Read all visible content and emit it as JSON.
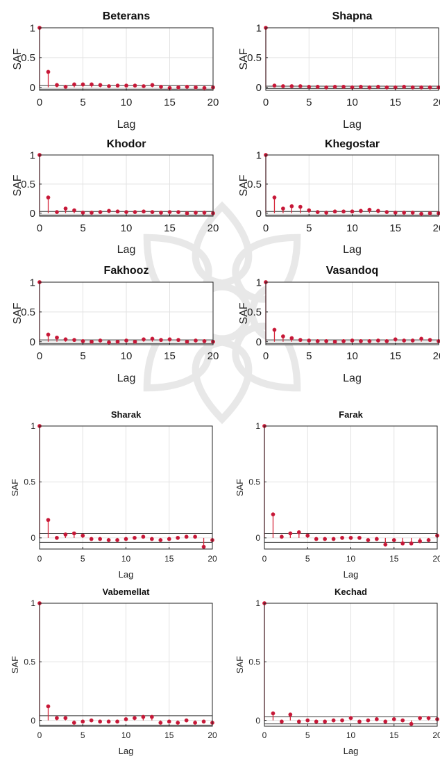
{
  "chart_data": [
    {
      "type": "stem",
      "title": "Beterans",
      "xlabel": "Lag",
      "ylabel": "SAF",
      "xlim": [
        0,
        20
      ],
      "ylim": [
        -0.05,
        1
      ],
      "xticks": [
        0,
        5,
        10,
        15,
        20
      ],
      "yticks": [
        0,
        0.5,
        1
      ],
      "ytick_labels": [
        "0",
        "0.5",
        "1"
      ],
      "conf_bound": 0.03,
      "x": [
        0,
        1,
        2,
        3,
        4,
        5,
        6,
        7,
        8,
        9,
        10,
        11,
        12,
        13,
        14,
        15,
        16,
        17,
        18,
        19,
        20
      ],
      "values": [
        1,
        0.26,
        0.04,
        0.01,
        0.05,
        0.05,
        0.05,
        0.04,
        0.02,
        0.03,
        0.03,
        0.03,
        0.02,
        0.04,
        0.01,
        -0.01,
        0.0,
        0.01,
        0.0,
        -0.01,
        0.0
      ]
    },
    {
      "type": "stem",
      "title": "Shapna",
      "xlabel": "Lag",
      "ylabel": "SAF",
      "xlim": [
        0,
        20
      ],
      "ylim": [
        -0.05,
        1
      ],
      "xticks": [
        0,
        5,
        10,
        15,
        20
      ],
      "yticks": [
        0,
        0.5,
        1
      ],
      "ytick_labels": [
        "0",
        "0.5",
        "1"
      ],
      "conf_bound": 0.02,
      "x": [
        0,
        1,
        2,
        3,
        4,
        5,
        6,
        7,
        8,
        9,
        10,
        11,
        12,
        13,
        14,
        15,
        16,
        17,
        18,
        19,
        20
      ],
      "values": [
        1,
        0.03,
        0.02,
        0.02,
        0.02,
        0.01,
        0.01,
        0.0,
        0.01,
        0.01,
        0.0,
        0.01,
        0.0,
        0.01,
        0.0,
        0.0,
        0.01,
        0.0,
        0.0,
        0.0,
        0.0
      ]
    },
    {
      "type": "stem",
      "title": "Khodor",
      "xlabel": "Lag",
      "ylabel": "SAF",
      "xlim": [
        0,
        20
      ],
      "ylim": [
        -0.05,
        1
      ],
      "xticks": [
        0,
        5,
        10,
        15,
        20
      ],
      "yticks": [
        0,
        0.5,
        1
      ],
      "ytick_labels": [
        "0",
        "0.5",
        "1"
      ],
      "conf_bound": 0.03,
      "x": [
        0,
        1,
        2,
        3,
        4,
        5,
        6,
        7,
        8,
        9,
        10,
        11,
        12,
        13,
        14,
        15,
        16,
        17,
        18,
        19,
        20
      ],
      "values": [
        1,
        0.27,
        0.02,
        0.08,
        0.05,
        0.01,
        0.01,
        0.02,
        0.04,
        0.03,
        0.02,
        0.02,
        0.03,
        0.02,
        0.01,
        0.02,
        0.02,
        0.0,
        0.01,
        0.01,
        0.0
      ]
    },
    {
      "type": "stem",
      "title": "Khegostar",
      "xlabel": "Lag",
      "ylabel": "SAF",
      "xlim": [
        0,
        20
      ],
      "ylim": [
        -0.05,
        1
      ],
      "xticks": [
        0,
        5,
        10,
        15,
        20
      ],
      "yticks": [
        0,
        0.5,
        1
      ],
      "ytick_labels": [
        "0",
        "0.5",
        "1"
      ],
      "conf_bound": 0.03,
      "x": [
        0,
        1,
        2,
        3,
        4,
        5,
        6,
        7,
        8,
        9,
        10,
        11,
        12,
        13,
        14,
        15,
        16,
        17,
        18,
        19,
        20
      ],
      "values": [
        1,
        0.27,
        0.08,
        0.12,
        0.11,
        0.05,
        0.02,
        0.01,
        0.03,
        0.03,
        0.03,
        0.04,
        0.06,
        0.04,
        0.02,
        0.01,
        0.01,
        0.01,
        -0.01,
        0.0,
        0.0
      ]
    },
    {
      "type": "stem",
      "title": "Fakhooz",
      "xlabel": "Lag",
      "ylabel": "SAF",
      "xlim": [
        0,
        20
      ],
      "ylim": [
        -0.05,
        1
      ],
      "xticks": [
        0,
        5,
        10,
        15,
        20
      ],
      "yticks": [
        0,
        0.5,
        1
      ],
      "ytick_labels": [
        "0",
        "0.5",
        "1"
      ],
      "conf_bound": 0.03,
      "x": [
        0,
        1,
        2,
        3,
        4,
        5,
        6,
        7,
        8,
        9,
        10,
        11,
        12,
        13,
        14,
        15,
        16,
        17,
        18,
        19,
        20
      ],
      "values": [
        1,
        0.12,
        0.07,
        0.04,
        0.03,
        0.01,
        0.0,
        0.02,
        -0.01,
        0.0,
        0.02,
        0.0,
        0.04,
        0.05,
        0.03,
        0.04,
        0.03,
        0.0,
        0.02,
        0.01,
        0.0
      ]
    },
    {
      "type": "stem",
      "title": "Vasandoq",
      "xlabel": "Lag",
      "ylabel": "SAF",
      "xlim": [
        0,
        20
      ],
      "ylim": [
        -0.05,
        1
      ],
      "xticks": [
        0,
        5,
        10,
        15,
        20
      ],
      "yticks": [
        0,
        0.5,
        1
      ],
      "ytick_labels": [
        "0",
        "0.5",
        "1"
      ],
      "conf_bound": 0.03,
      "x": [
        0,
        1,
        2,
        3,
        4,
        5,
        6,
        7,
        8,
        9,
        10,
        11,
        12,
        13,
        14,
        15,
        16,
        17,
        18,
        19,
        20
      ],
      "values": [
        1,
        0.2,
        0.09,
        0.06,
        0.03,
        0.02,
        0.01,
        0.01,
        0.0,
        0.01,
        0.02,
        0.01,
        0.01,
        0.02,
        0.01,
        0.04,
        0.02,
        0.02,
        0.05,
        0.03,
        0.01
      ]
    },
    {
      "type": "stem",
      "title": "Sharak",
      "xlabel": "Lag",
      "ylabel": "SAF",
      "xlim": [
        0,
        20
      ],
      "ylim": [
        -0.1,
        1
      ],
      "xticks": [
        0,
        5,
        10,
        15,
        20
      ],
      "yticks": [
        0,
        0.5,
        1
      ],
      "ytick_labels": [
        "0",
        "0.5",
        "1"
      ],
      "conf_bound": 0.04,
      "x": [
        0,
        1,
        2,
        3,
        4,
        5,
        6,
        7,
        8,
        9,
        10,
        11,
        12,
        13,
        14,
        15,
        16,
        17,
        18,
        19,
        20
      ],
      "values": [
        1,
        0.16,
        0.0,
        0.03,
        0.04,
        0.02,
        -0.01,
        -0.01,
        -0.02,
        -0.02,
        -0.01,
        0.0,
        0.01,
        -0.01,
        -0.02,
        -0.01,
        0.0,
        0.01,
        0.01,
        -0.08,
        -0.02
      ]
    },
    {
      "type": "stem",
      "title": "Farak",
      "xlabel": "Lag",
      "ylabel": "SAF",
      "xlim": [
        0,
        20
      ],
      "ylim": [
        -0.1,
        1
      ],
      "xticks": [
        0,
        5,
        10,
        15,
        20
      ],
      "yticks": [
        0,
        0.5,
        1
      ],
      "ytick_labels": [
        "0",
        "0.5",
        "1"
      ],
      "conf_bound": 0.04,
      "x": [
        0,
        1,
        2,
        3,
        4,
        5,
        6,
        7,
        8,
        9,
        10,
        11,
        12,
        13,
        14,
        15,
        16,
        17,
        18,
        19,
        20
      ],
      "values": [
        1,
        0.21,
        0.01,
        0.04,
        0.05,
        0.02,
        -0.01,
        -0.01,
        -0.01,
        0.0,
        0.0,
        0.0,
        -0.02,
        -0.01,
        -0.06,
        -0.02,
        -0.05,
        -0.05,
        -0.03,
        -0.02,
        0.02
      ]
    },
    {
      "type": "stem",
      "title": "Vabemellat",
      "xlabel": "Lag",
      "ylabel": "SAF",
      "xlim": [
        0,
        20
      ],
      "ylim": [
        -0.05,
        1
      ],
      "xticks": [
        0,
        5,
        10,
        15,
        20
      ],
      "yticks": [
        0,
        0.5,
        1
      ],
      "ytick_labels": [
        "0",
        "0.5",
        "1"
      ],
      "conf_bound": 0.04,
      "x": [
        0,
        1,
        2,
        3,
        4,
        5,
        6,
        7,
        8,
        9,
        10,
        11,
        12,
        13,
        14,
        15,
        16,
        17,
        18,
        19,
        20
      ],
      "values": [
        1,
        0.12,
        0.02,
        0.02,
        -0.02,
        -0.01,
        0.0,
        -0.01,
        -0.01,
        -0.01,
        0.01,
        0.02,
        0.03,
        0.03,
        -0.02,
        -0.01,
        -0.02,
        0.0,
        -0.02,
        -0.01,
        -0.02
      ]
    },
    {
      "type": "stem",
      "title": "Kechad",
      "xlabel": "Lag",
      "ylabel": "SAF",
      "xlim": [
        0,
        20
      ],
      "ylim": [
        -0.05,
        1
      ],
      "xticks": [
        0,
        5,
        10,
        15,
        20
      ],
      "yticks": [
        0,
        0.5,
        1
      ],
      "ytick_labels": [
        "0",
        "0.5",
        "1"
      ],
      "conf_bound": 0.03,
      "x": [
        0,
        1,
        2,
        3,
        4,
        5,
        6,
        7,
        8,
        9,
        10,
        11,
        12,
        13,
        14,
        15,
        16,
        17,
        18,
        19,
        20
      ],
      "values": [
        1,
        0.06,
        -0.01,
        0.05,
        -0.01,
        0.0,
        -0.01,
        -0.01,
        0.0,
        0.0,
        0.02,
        -0.01,
        0.0,
        0.01,
        -0.01,
        0.01,
        0.0,
        -0.03,
        0.02,
        0.02,
        0.01
      ]
    }
  ],
  "colors": {
    "stem": "#d6283c",
    "marker": "#c3173a",
    "axis": "#222222",
    "grid": "#e2e2e2",
    "bound": "#333333"
  }
}
